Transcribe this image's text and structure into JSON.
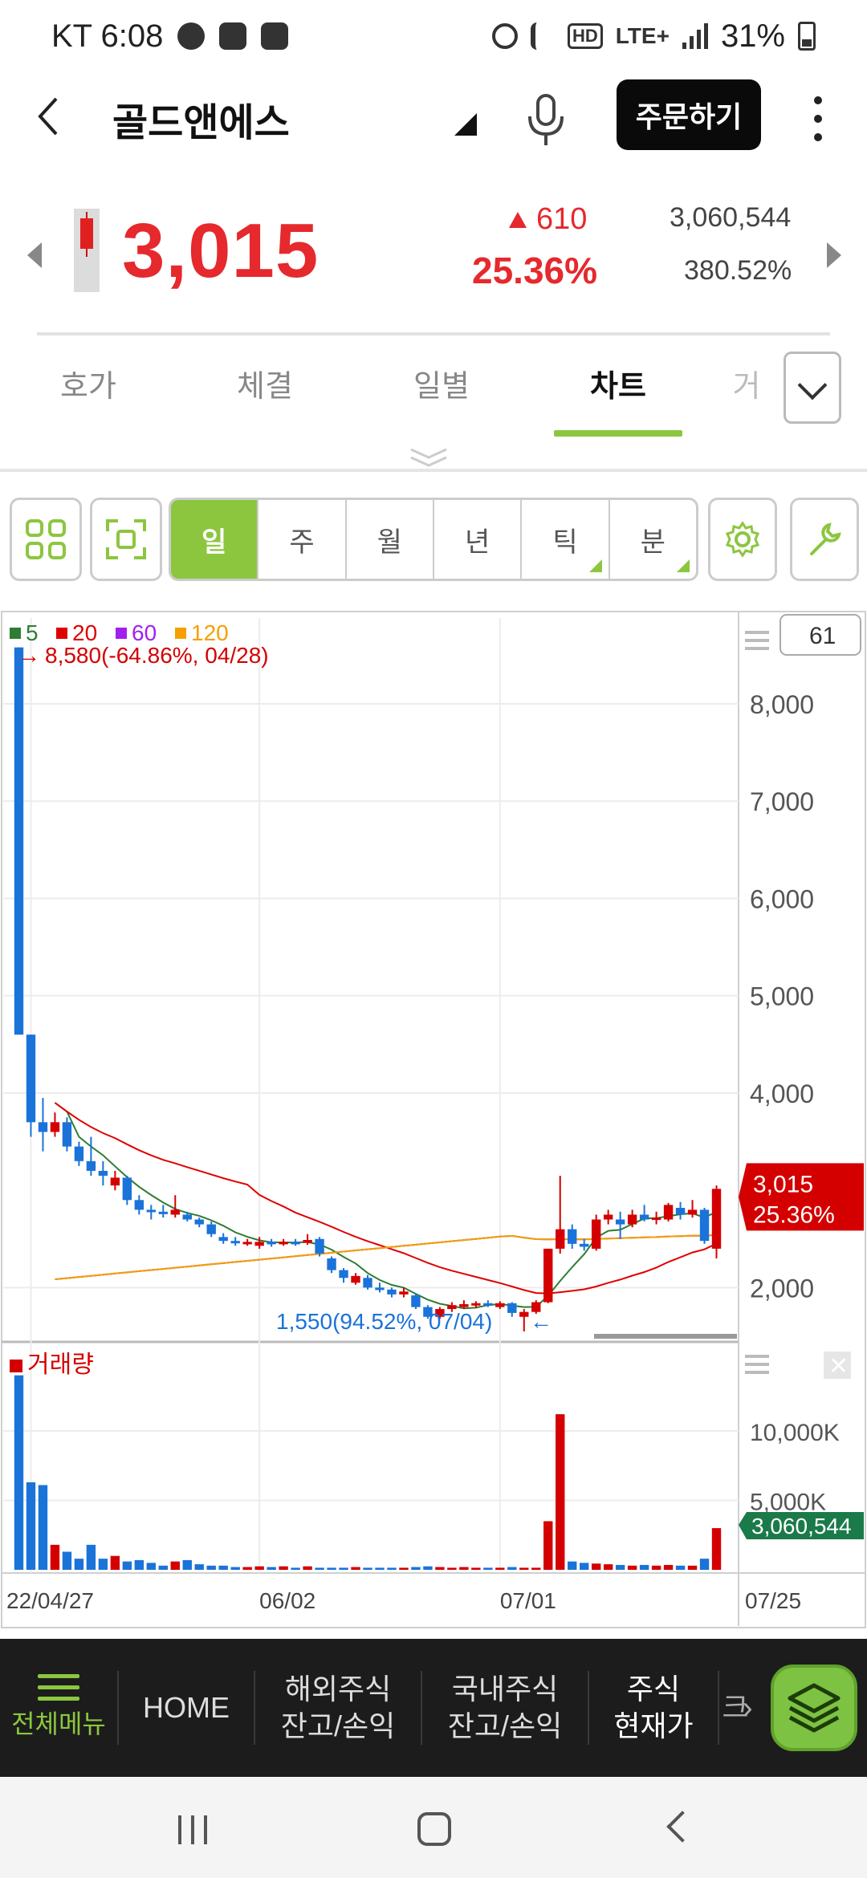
{
  "statusbar": {
    "carrier_time": "KT 6:08",
    "net_label": "LTE+",
    "battery_text": "31%",
    "icons": [
      "check-badge-icon",
      "gallery-icon",
      "puzzle-icon",
      "alarm-icon",
      "mute-icon",
      "hd-icon",
      "lte-icon",
      "signal-icon",
      "battery-icon"
    ]
  },
  "header": {
    "stock_name": "골드앤에스",
    "order_button": "주문하기"
  },
  "price": {
    "current": "3,015",
    "change_amount": "610",
    "change_rate": "25.36%",
    "volume": "3,060,544",
    "volume_rate": "380.52%",
    "color_up": "#e5292d"
  },
  "tabs": [
    {
      "label": "호가"
    },
    {
      "label": "체결"
    },
    {
      "label": "일별"
    },
    {
      "label": "차트"
    },
    {
      "label": "거"
    }
  ],
  "active_tab": "차트",
  "toolbar": {
    "periods": [
      "일",
      "주",
      "월",
      "년",
      "틱",
      "분"
    ],
    "active_period": "일",
    "count_value": "61"
  },
  "chart_data": {
    "type": "candlestick",
    "ma_legend": [
      {
        "label": "5",
        "color": "#2e7d32"
      },
      {
        "label": "20",
        "color": "#e00000"
      },
      {
        "label": "60",
        "color": "#a020f0"
      },
      {
        "label": "120",
        "color": "#f5a000"
      }
    ],
    "high_annotation": "8,580(-64.86%, 04/28)",
    "low_annotation": "1,550(94.52%, 07/04)",
    "y_ticks": [
      "8,000",
      "7,000",
      "6,000",
      "5,000",
      "4,000",
      "2,000"
    ],
    "ylim": [
      1500,
      8800
    ],
    "current_label_price": "3,015",
    "current_label_rate": "25.36%",
    "x_ticks": [
      "22/04/27",
      "06/02",
      "07/01",
      "07/25"
    ],
    "candles": [
      [
        8580,
        4600,
        8580,
        4600
      ],
      [
        4600,
        3700,
        4600,
        3550
      ],
      [
        3700,
        3600,
        3950,
        3400
      ],
      [
        3600,
        3700,
        3800,
        3550
      ],
      [
        3700,
        3450,
        3750,
        3400
      ],
      [
        3450,
        3300,
        3500,
        3250
      ],
      [
        3300,
        3200,
        3550,
        3150
      ],
      [
        3200,
        3150,
        3300,
        3050
      ],
      [
        3050,
        3130,
        3200,
        3000
      ],
      [
        3130,
        2900,
        3150,
        2850
      ],
      [
        2900,
        2800,
        2950,
        2750
      ],
      [
        2800,
        2780,
        2850,
        2700
      ],
      [
        2780,
        2760,
        2850,
        2720
      ],
      [
        2750,
        2800,
        2950,
        2720
      ],
      [
        2750,
        2700,
        2780,
        2680
      ],
      [
        2700,
        2650,
        2720,
        2620
      ],
      [
        2650,
        2550,
        2680,
        2520
      ],
      [
        2520,
        2480,
        2560,
        2450
      ],
      [
        2480,
        2460,
        2520,
        2430
      ],
      [
        2460,
        2470,
        2500,
        2430
      ],
      [
        2430,
        2470,
        2520,
        2400
      ],
      [
        2470,
        2450,
        2500,
        2420
      ],
      [
        2450,
        2470,
        2500,
        2430
      ],
      [
        2470,
        2460,
        2500,
        2430
      ],
      [
        2460,
        2490,
        2550,
        2440
      ],
      [
        2500,
        2350,
        2520,
        2320
      ],
      [
        2300,
        2180,
        2320,
        2150
      ],
      [
        2180,
        2100,
        2200,
        2050
      ],
      [
        2050,
        2120,
        2150,
        2030
      ],
      [
        2100,
        2000,
        2130,
        1980
      ],
      [
        2000,
        1990,
        2050,
        1950
      ],
      [
        1980,
        1930,
        2000,
        1900
      ],
      [
        1930,
        1960,
        2000,
        1900
      ],
      [
        1920,
        1800,
        1940,
        1780
      ],
      [
        1800,
        1700,
        1820,
        1680
      ],
      [
        1700,
        1780,
        1800,
        1680
      ],
      [
        1780,
        1820,
        1850,
        1750
      ],
      [
        1800,
        1830,
        1870,
        1780
      ],
      [
        1820,
        1840,
        1860,
        1790
      ],
      [
        1840,
        1830,
        1870,
        1800
      ],
      [
        1800,
        1840,
        1860,
        1780
      ],
      [
        1840,
        1740,
        1850,
        1700
      ],
      [
        1700,
        1750,
        1780,
        1550
      ],
      [
        1750,
        1850,
        1870,
        1730
      ],
      [
        1850,
        2400,
        2400,
        1840
      ],
      [
        2400,
        2600,
        3150,
        2350
      ],
      [
        2600,
        2450,
        2650,
        2400
      ],
      [
        2450,
        2420,
        2500,
        2380
      ],
      [
        2400,
        2700,
        2750,
        2380
      ],
      [
        2700,
        2750,
        2800,
        2650
      ],
      [
        2700,
        2650,
        2780,
        2500
      ],
      [
        2650,
        2750,
        2800,
        2620
      ],
      [
        2750,
        2700,
        2850,
        2680
      ],
      [
        2700,
        2720,
        2780,
        2650
      ],
      [
        2700,
        2850,
        2870,
        2680
      ],
      [
        2820,
        2750,
        2880,
        2700
      ],
      [
        2750,
        2800,
        2900,
        2720
      ],
      [
        2800,
        2480,
        2820,
        2450
      ],
      [
        2400,
        3015,
        3050,
        2300
      ]
    ],
    "volume_series_label": "거래량",
    "volume_y_ticks": [
      "10,000K",
      "5,000K"
    ],
    "volume_ylim": [
      0,
      14500
    ],
    "volume_current_label": "3,060,544",
    "volumes": [
      14000,
      6300,
      6100,
      1800,
      1300,
      800,
      1800,
      800,
      1000,
      600,
      700,
      500,
      300,
      600,
      700,
      400,
      300,
      300,
      200,
      200,
      250,
      200,
      250,
      150,
      250,
      150,
      150,
      150,
      200,
      150,
      150,
      150,
      150,
      200,
      250,
      200,
      150,
      200,
      150,
      150,
      150,
      200,
      150,
      150,
      3500,
      11200,
      600,
      500,
      450,
      400,
      350,
      300,
      350,
      300,
      350,
      300,
      300,
      800,
      3000
    ]
  },
  "bottom_nav": {
    "menu_label": "전체메뉴",
    "home": "HOME",
    "item1_line1": "해외주식",
    "item1_line2": "잔고/손익",
    "item2_line1": "국내주식",
    "item2_line2": "잔고/손익",
    "item3_line1": "주식",
    "item3_line2": "현재가",
    "item4_partial": "크",
    "accent": "#8cc63f"
  }
}
